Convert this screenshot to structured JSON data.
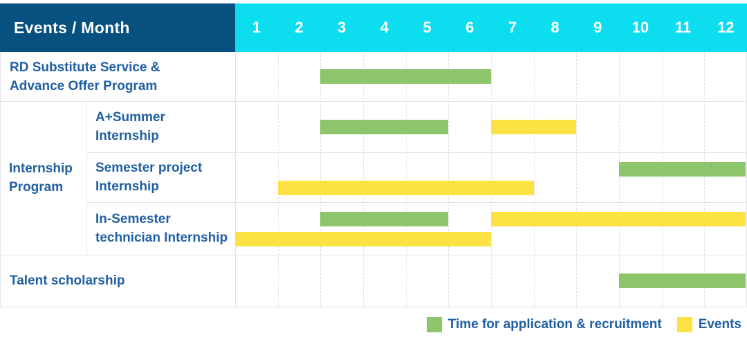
{
  "header": {
    "corner_label": "Events / Month",
    "months": [
      "1",
      "2",
      "3",
      "4",
      "5",
      "6",
      "7",
      "8",
      "9",
      "10",
      "11",
      "12"
    ]
  },
  "colors": {
    "header_bg": "#075181",
    "months_bg": "#0CDEF0",
    "header_text": "#FFFFFF",
    "label_text": "#1F5FA2",
    "application": "#8CC56B",
    "event": "#FDE244"
  },
  "legend": {
    "items": [
      {
        "key": "application",
        "label": "Time for application & recruitment"
      },
      {
        "key": "event",
        "label": "Events"
      }
    ]
  },
  "chart_data": {
    "type": "bar",
    "subtype": "gantt-schedule",
    "x_label": "Month",
    "x_ticks": [
      1,
      2,
      3,
      4,
      5,
      6,
      7,
      8,
      9,
      10,
      11,
      12
    ],
    "series_names": {
      "application": "Time for application & recruitment",
      "event": "Events"
    },
    "groups": {
      "Internship Program": {
        "label_lines": [
          "Internship",
          "Program"
        ]
      }
    },
    "rows": [
      {
        "label": "RD Substitute Service & Advance Offer Program",
        "label_lines": [
          "RD Substitute Service &",
          "Advance Offer Program"
        ],
        "group": null,
        "bars": [
          {
            "series": "application",
            "start_month": 3,
            "end_month": 6,
            "lane": "center"
          }
        ]
      },
      {
        "label": "A+Summer Internship",
        "label_lines": [
          "A+Summer",
          "Internship"
        ],
        "group": "Internship Program",
        "bars": [
          {
            "series": "application",
            "start_month": 3,
            "end_month": 5,
            "lane": "center"
          },
          {
            "series": "event",
            "start_month": 7,
            "end_month": 8,
            "lane": "center"
          }
        ]
      },
      {
        "label": "Semester project Internship",
        "label_lines": [
          "Semester project",
          "Internship"
        ],
        "group": "Internship Program",
        "bars": [
          {
            "series": "application",
            "start_month": 10,
            "end_month": 12,
            "lane": "top"
          },
          {
            "series": "event",
            "start_month": 2,
            "end_month": 7,
            "lane": "bottom"
          }
        ]
      },
      {
        "label": "In-Semester technician Internship",
        "label_lines": [
          "In-Semester",
          "technician Internship"
        ],
        "group": "Internship Program",
        "bars": [
          {
            "series": "application",
            "start_month": 3,
            "end_month": 5,
            "lane": "top"
          },
          {
            "series": "event",
            "start_month": 7,
            "end_month": 12,
            "lane": "top"
          },
          {
            "series": "event",
            "start_month": 1,
            "end_month": 6,
            "lane": "bottom"
          }
        ]
      },
      {
        "label": "Talent scholarship",
        "label_lines": [
          "Talent scholarship"
        ],
        "group": null,
        "bars": [
          {
            "series": "application",
            "start_month": 10,
            "end_month": 12,
            "lane": "center"
          }
        ]
      }
    ],
    "legend_position": "bottom-right",
    "grid": "dashed-vertical-month-lines"
  }
}
